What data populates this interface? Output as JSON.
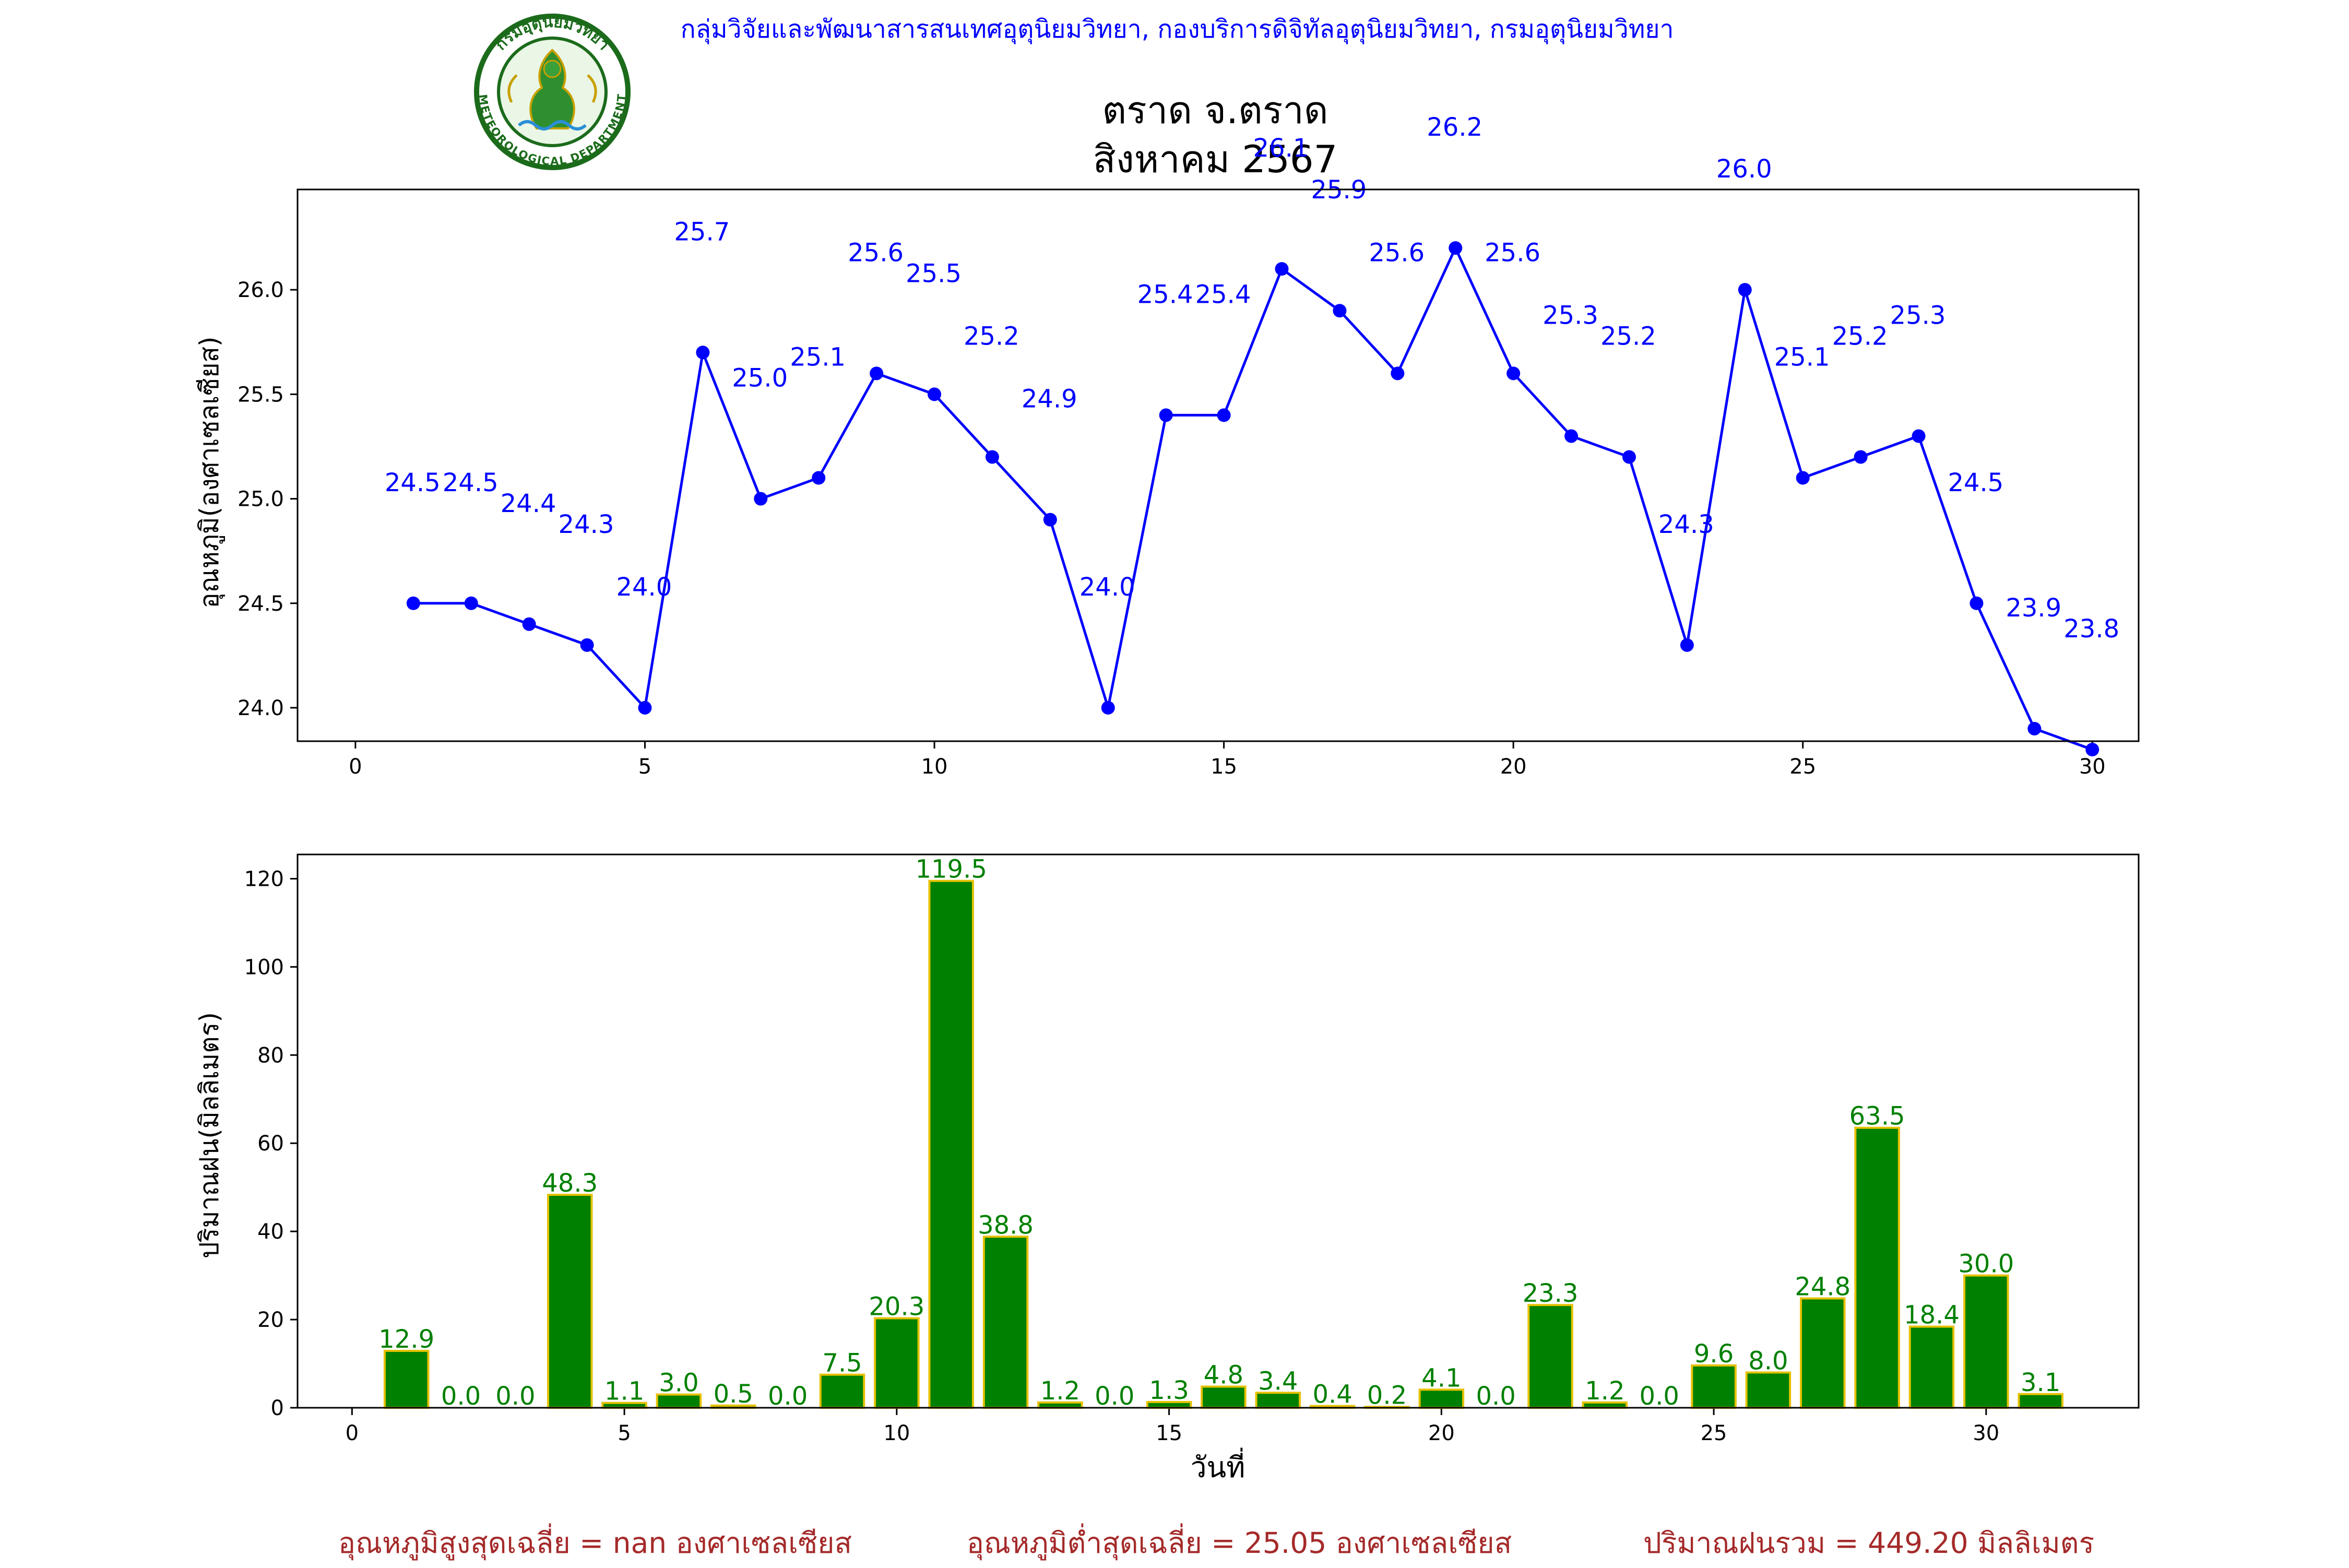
{
  "header": {
    "credit": "กลุ่มวิจัยและพัฒนาสารสนเทศอุตุนิยมวิทยา, กองบริการดิจิทัลอุตุนิยมวิทยา, กรมอุตุนิยมวิทยา",
    "logo_text_top": "กรมอุตุนิยมวิทยา",
    "logo_text_bottom": "METEOROLOGICAL DEPARTMENT",
    "logo_icon": "seal-icon"
  },
  "colors": {
    "temperature": "#0000ff",
    "rain_fill": "#008000",
    "rain_edge": "#e5c100",
    "rain_label": "#008000",
    "footer": "#a52a2a",
    "credit": "#0000ff"
  },
  "chart_data": [
    {
      "type": "line",
      "title": [
        "ตราด จ.ตราด",
        "สิงหาคม 2567"
      ],
      "xlabel": "",
      "ylabel": "อุณหภูมิ(องศาเซลเซียส)",
      "xlim": [
        -1,
        30.8
      ],
      "ylim": [
        23.84,
        26.48
      ],
      "xticks": [
        0,
        5,
        10,
        15,
        20,
        25,
        30
      ],
      "yticks": [
        24.0,
        24.5,
        25.0,
        25.5,
        26.0
      ],
      "x": [
        1,
        2,
        3,
        4,
        5,
        6,
        7,
        8,
        9,
        10,
        11,
        12,
        13,
        14,
        15,
        16,
        17,
        18,
        19,
        20,
        21,
        22,
        23,
        24,
        25,
        26,
        27,
        28,
        29,
        30
      ],
      "series": [
        {
          "values": [
            24.5,
            24.5,
            24.4,
            24.3,
            24.0,
            25.7,
            25.0,
            25.1,
            25.6,
            25.5,
            25.2,
            24.9,
            24.0,
            25.4,
            25.4,
            26.1,
            25.9,
            25.6,
            26.2,
            25.6,
            25.3,
            25.2,
            24.3,
            26.0,
            25.1,
            25.2,
            25.3,
            24.5,
            23.9,
            23.8
          ],
          "labels": [
            "24.5",
            "24.5",
            "24.4",
            "24.3",
            "24.0",
            "25.7",
            "25.0",
            "25.1",
            "25.6",
            "25.5",
            "25.2",
            "24.9",
            "24.0",
            "25.4",
            "25.4",
            "26.1",
            "25.9",
            "25.6",
            "26.2",
            "25.6",
            "25.3",
            "25.2",
            "24.3",
            "26.0",
            "25.1",
            "25.2",
            "25.3",
            "24.5",
            "23.9",
            "23.8"
          ]
        }
      ],
      "grid": false
    },
    {
      "type": "bar",
      "xlabel": "วันที่",
      "ylabel": "ปริมาณฝน(มิลลิเมตร)",
      "xlim": [
        -1,
        32.8
      ],
      "ylim": [
        0,
        125.5
      ],
      "xticks": [
        0,
        5,
        10,
        15,
        20,
        25,
        30
      ],
      "yticks": [
        0,
        20,
        40,
        60,
        80,
        100,
        120
      ],
      "x": [
        1,
        2,
        3,
        4,
        5,
        6,
        7,
        8,
        9,
        10,
        11,
        12,
        13,
        14,
        15,
        16,
        17,
        18,
        19,
        20,
        21,
        22,
        23,
        24,
        25,
        26,
        27,
        28,
        29,
        30,
        31
      ],
      "values": [
        12.9,
        0.0,
        0.0,
        48.3,
        1.1,
        3.0,
        0.5,
        0.0,
        7.5,
        20.3,
        119.5,
        38.8,
        1.2,
        0.0,
        1.3,
        4.8,
        3.4,
        0.4,
        0.2,
        4.1,
        0.0,
        23.3,
        1.2,
        0.0,
        9.6,
        8.0,
        24.8,
        63.5,
        18.4,
        30.0,
        3.1
      ],
      "labels": [
        "12.9",
        "0.0",
        "0.0",
        "48.3",
        "1.1",
        "3.0",
        "0.5",
        "0.0",
        "7.5",
        "20.3",
        "119.5",
        "38.8",
        "1.2",
        "0.0",
        "1.3",
        "4.8",
        "3.4",
        "0.4",
        "0.2",
        "4.1",
        "0.0",
        "23.3",
        "1.2",
        "0.0",
        "9.6",
        "8.0",
        "24.8",
        "63.5",
        "18.4",
        "30.0",
        "3.1"
      ],
      "grid": false
    }
  ],
  "footer": {
    "max_avg": "อุณหภูมิสูงสุดเฉลี่ย = nan องศาเซลเซียส",
    "min_avg": "อุณหภูมิต่ำสุดเฉลี่ย = 25.05 องศาเซลเซียส",
    "rain_total": "ปริมาณฝนรวม = 449.20 มิลลิเมตร"
  }
}
